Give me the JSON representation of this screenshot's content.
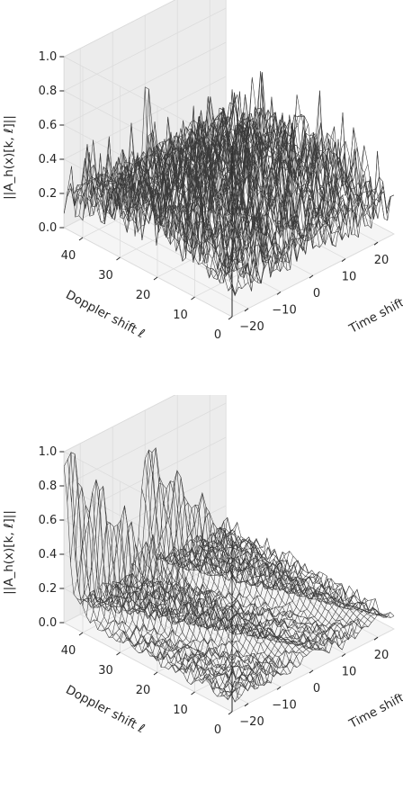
{
  "chart_data": [
    {
      "type": "surface",
      "zlabel": "||A_h(x)[k, ℓ]||",
      "xlabel": "Time shift k",
      "ylabel": "Doppler shift ℓ",
      "zlim": [
        0.0,
        1.0
      ],
      "xlim": [
        -25,
        25
      ],
      "ylim": [
        0,
        45
      ],
      "z_ticks": [
        "0.0",
        "0.2",
        "0.4",
        "0.6",
        "0.8",
        "1.0"
      ],
      "x_ticks": [
        "−20",
        "−10",
        "0",
        "10",
        "20"
      ],
      "y_ticks": [
        "0",
        "10",
        "20",
        "30",
        "40"
      ],
      "surface": {
        "description": "noise-like ambiguity surface",
        "noise_floor": 0.28,
        "noise_peak": 0.55,
        "spike": {
          "k": 0,
          "l": 45,
          "value": 0.58
        }
      }
    },
    {
      "type": "surface",
      "zlabel": "||A_h(x)[k, ℓ]||",
      "xlabel": "Time shift k",
      "ylabel": "Doppler shift ℓ",
      "zlim": [
        0.0,
        1.0
      ],
      "xlim": [
        -25,
        25
      ],
      "ylim": [
        0,
        45
      ],
      "z_ticks": [
        "0.0",
        "0.2",
        "0.4",
        "0.6",
        "0.8",
        "1.0"
      ],
      "x_ticks": [
        "−20",
        "−10",
        "0",
        "10",
        "20"
      ],
      "y_ticks": [
        "0",
        "10",
        "20",
        "30",
        "40"
      ],
      "surface": {
        "description": "ridge-shaped ambiguity surface",
        "ridges": [
          {
            "k_start": -25,
            "l_start": 45,
            "k_end": 0,
            "l_end": 0,
            "peak": 1.0
          },
          {
            "k_start": 0,
            "l_start": 45,
            "k_end": 20,
            "l_end": 0,
            "peak": 0.75
          }
        ],
        "background": 0.12
      }
    }
  ]
}
